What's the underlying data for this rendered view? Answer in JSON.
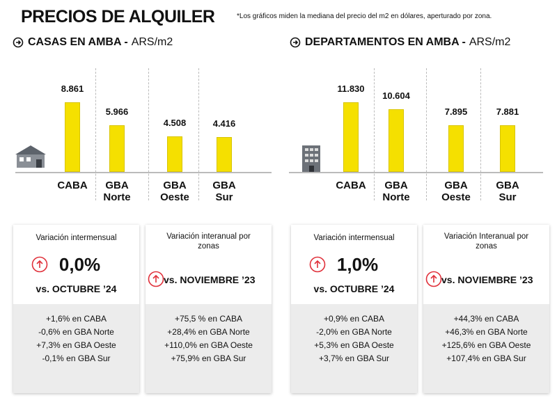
{
  "title": "PRECIOS DE ALQUILER",
  "note": "*Los gráficos miden  la mediana del precio del m2 en dólares, aperturado por zona.",
  "chart_data": [
    {
      "type": "bar",
      "title": "CASAS EN AMBA -",
      "subtitle": "ARS/m2",
      "categories": [
        "CABA",
        "GBA Norte",
        "GBA Oeste",
        "GBA Sur"
      ],
      "values": [
        8861,
        5966,
        4508,
        4416
      ],
      "value_labels": [
        "8.861",
        "5.966",
        "4.508",
        "4.416"
      ],
      "color": "#f5e000"
    },
    {
      "type": "bar",
      "title": "DEPARTAMENTOS EN AMBA -",
      "subtitle": "ARS/m2",
      "categories": [
        "CABA",
        "GBA Norte",
        "GBA Oeste",
        "GBA Sur"
      ],
      "values": [
        11830,
        10604,
        7895,
        7881
      ],
      "value_labels": [
        "11.830",
        "10.604",
        "7.895",
        "7.881"
      ],
      "color": "#f5e000"
    }
  ],
  "cards": [
    {
      "label": "Variación intermensual",
      "value": "0,0%",
      "comparison": "vs. OCTUBRE ’24",
      "lines": [
        "+1,6% en CABA",
        "-0,6% en GBA Norte",
        "+7,3% en GBA Oeste",
        "-0,1% en GBA Sur"
      ]
    },
    {
      "label": "Variación interanual por zonas",
      "comparison": "vs. NOVIEMBRE ’23",
      "lines": [
        "+75,5 % en CABA",
        "+28,4% en GBA Norte",
        "+110,0% en GBA Oeste",
        "+75,9% en GBA Sur"
      ]
    },
    {
      "label": "Variación intermensual",
      "value": "1,0%",
      "comparison": "vs. OCTUBRE ’24",
      "lines": [
        "+0,9% en CABA",
        "-2,0% en GBA Norte",
        "+5,3% en GBA Oeste",
        "+3,7% en GBA Sur"
      ]
    },
    {
      "label": "Variación Interanual por zonas",
      "comparison": "vs. NOVIEMBRE ’23",
      "lines": [
        "+44,3% en CABA",
        "+46,3% en GBA Norte",
        "+125,6% en GBA Oeste",
        "+107,4% en GBA Sur"
      ]
    }
  ]
}
